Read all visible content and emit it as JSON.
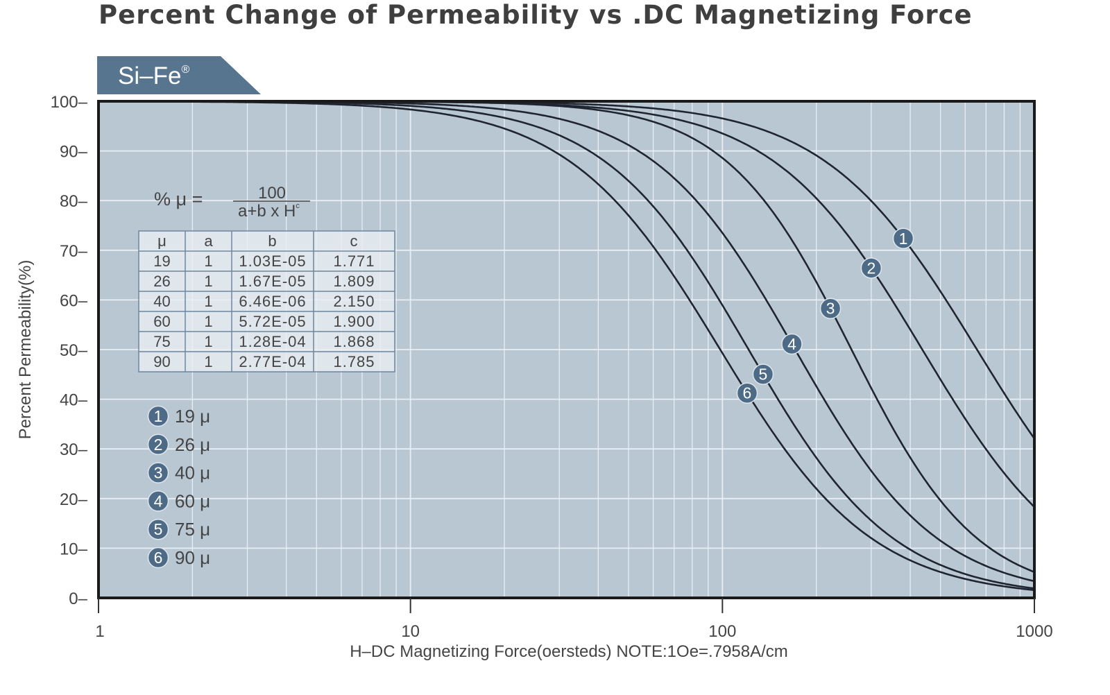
{
  "chart_data": {
    "type": "line",
    "title": "Percent Change of Permeability vs .DC Magnetizing Force",
    "material_tab": "Si–Fe",
    "material_mark": "®",
    "xlabel": "H–DC Magnetizing Force(oersteds) NOTE:1Oe=.7958A/cm",
    "ylabel": "Percent Permeability(%)",
    "xscale": "log",
    "xlim": [
      1,
      1000
    ],
    "ylim": [
      0,
      100
    ],
    "xticks": [
      "1",
      "10",
      "100",
      "1000"
    ],
    "yticks": [
      "0–",
      "10–",
      "20–",
      "30–",
      "40–",
      "50–",
      "60–",
      "70–",
      "80–",
      "90–",
      "100–"
    ],
    "grid": true,
    "formula": {
      "lhs": "% μ =",
      "numerator": "100",
      "denominator": "a+b x H",
      "exponent": "c"
    },
    "table": {
      "headers": [
        "μ",
        "a",
        "b",
        "c"
      ],
      "rows": [
        [
          "19",
          "1",
          "1.03E-05",
          "1.771"
        ],
        [
          "26",
          "1",
          "1.67E-05",
          "1.809"
        ],
        [
          "40",
          "1",
          "6.46E-06",
          "2.150"
        ],
        [
          "60",
          "1",
          "5.72E-05",
          "1.900"
        ],
        [
          "75",
          "1",
          "1.28E-04",
          "1.868"
        ],
        [
          "90",
          "1",
          "2.77E-04",
          "1.785"
        ]
      ]
    },
    "series": [
      {
        "id": "1",
        "name": "19 μ",
        "a": 1,
        "b": 1.03e-05,
        "c": 1.771,
        "label_at_H": 380
      },
      {
        "id": "2",
        "name": "26 μ",
        "a": 1,
        "b": 1.67e-05,
        "c": 1.809,
        "label_at_H": 300
      },
      {
        "id": "3",
        "name": "40 μ",
        "a": 1,
        "b": 6.46e-06,
        "c": 2.15,
        "label_at_H": 222
      },
      {
        "id": "4",
        "name": "60 μ",
        "a": 1,
        "b": 5.72e-05,
        "c": 1.9,
        "label_at_H": 167
      },
      {
        "id": "5",
        "name": "75 μ",
        "a": 1,
        "b": 0.000128,
        "c": 1.868,
        "label_at_H": 135
      },
      {
        "id": "6",
        "name": "90 μ",
        "a": 1,
        "b": 0.000277,
        "c": 1.785,
        "label_at_H": 120
      }
    ],
    "legend_position": "left-middle",
    "colors": {
      "plot_bg": "#b9c7d3",
      "grid": "#e9eef3",
      "curve": "#1e2530",
      "badge": "#4d6a86",
      "tab": "#587590"
    }
  }
}
